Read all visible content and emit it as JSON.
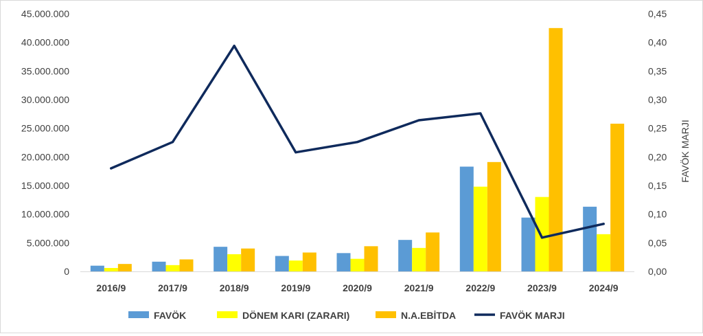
{
  "chart_data": {
    "type": "bar",
    "categories": [
      "2016/9",
      "2017/9",
      "2018/9",
      "2019/9",
      "2020/9",
      "2021/9",
      "2022/9",
      "2023/9",
      "2024/9"
    ],
    "series": [
      {
        "name": "FAVÖK",
        "type": "bar",
        "axis": "left",
        "color": "#5b9bd5",
        "values": [
          1000000,
          1700000,
          4300000,
          2700000,
          3200000,
          5500000,
          18300000,
          9400000,
          11300000
        ]
      },
      {
        "name": "DÖNEM KARI (ZARARI)",
        "type": "bar",
        "axis": "left",
        "color": "#ffff00",
        "values": [
          600000,
          1100000,
          3000000,
          1900000,
          2200000,
          4100000,
          14800000,
          13000000,
          6500000
        ]
      },
      {
        "name": "N.A.EBİTDA",
        "type": "bar",
        "axis": "left",
        "color": "#ffc000",
        "values": [
          1300000,
          2100000,
          4000000,
          3300000,
          4400000,
          6800000,
          19100000,
          42500000,
          25800000
        ]
      },
      {
        "name": "FAVÖK MARJI",
        "type": "line",
        "axis": "right",
        "color": "#0f2a5c",
        "values": [
          0.18,
          0.226,
          0.394,
          0.208,
          0.226,
          0.264,
          0.276,
          0.059,
          0.083
        ]
      }
    ],
    "y_left": {
      "min": 0,
      "max": 45000000,
      "ticks": [
        "0",
        "5.000.000",
        "10.000.000",
        "15.000.000",
        "20.000.000",
        "25.000.000",
        "30.000.000",
        "35.000.000",
        "40.000.000",
        "45.000.000"
      ]
    },
    "y_right": {
      "min": 0,
      "max": 0.45,
      "label": "FAVÖK MARJI",
      "ticks": [
        "0,00",
        "0,05",
        "0,10",
        "0,15",
        "0,20",
        "0,25",
        "0,30",
        "0,35",
        "0,40",
        "0,45"
      ]
    },
    "legend_position": "bottom",
    "grid": false
  }
}
